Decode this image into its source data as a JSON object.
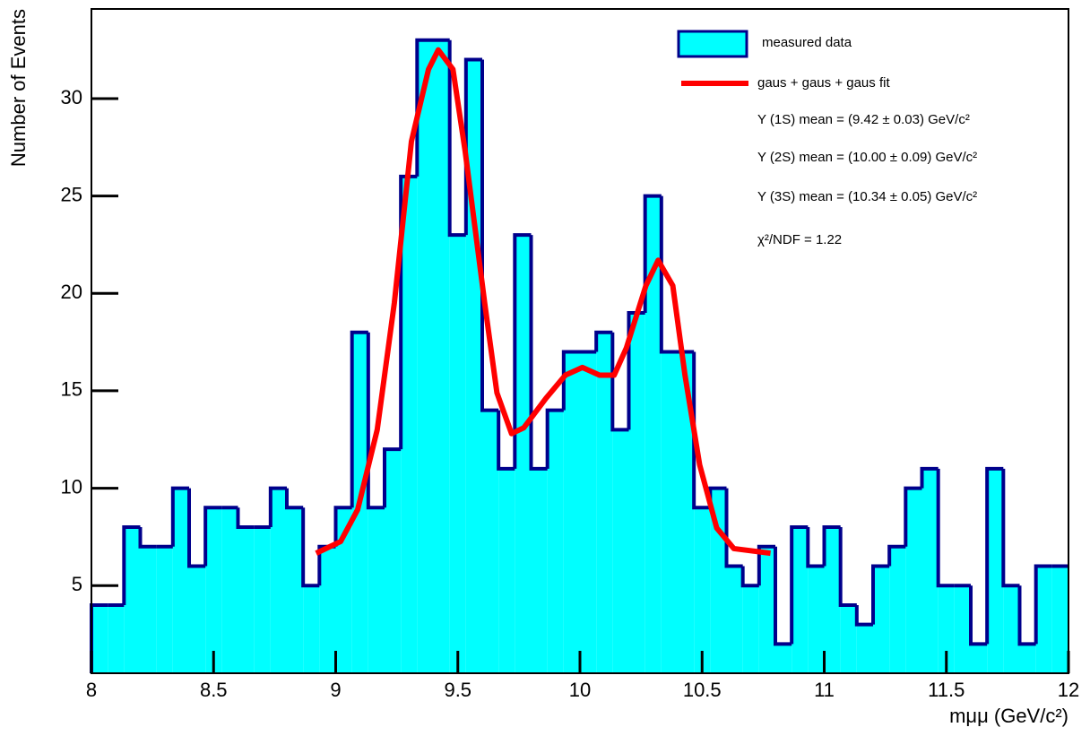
{
  "chart_data": {
    "type": "histogram",
    "ylabel": "Number of Events",
    "xlabel": "mμμ (GeV/c²)",
    "bins": [
      8,
      8.0667,
      8.1333,
      8.2,
      8.2667,
      8.3333,
      8.4,
      8.4667,
      8.5333,
      8.6,
      8.6667,
      8.7333,
      8.8,
      8.8667,
      8.9333,
      9,
      9.0667,
      9.1333,
      9.2,
      9.2667,
      9.3333,
      9.4,
      9.4667,
      9.5333,
      9.6,
      9.6667,
      9.7333,
      9.8,
      9.8667,
      9.9333,
      10,
      10.0667,
      10.1333,
      10.2,
      10.2667,
      10.3333,
      10.4,
      10.4667,
      10.5333,
      10.6,
      10.6667,
      10.7333,
      10.8,
      10.8667,
      10.9333,
      11,
      11.0667,
      11.1333,
      11.2,
      11.2667,
      11.3333,
      11.4,
      11.4667,
      11.5333,
      11.6,
      11.6667,
      11.7333,
      11.8,
      11.8667,
      11.9333,
      12
    ],
    "series": [
      {
        "name": "measured data",
        "color": "#00ffff",
        "edge_color": "#00008b",
        "values": [
          4,
          4,
          8,
          7,
          7,
          10,
          6,
          9,
          9,
          8,
          8,
          10,
          9,
          5,
          7,
          9,
          18,
          9,
          12,
          26,
          33,
          33,
          23,
          32,
          14,
          11,
          23,
          11,
          14,
          17,
          17,
          18,
          13,
          19,
          25,
          17,
          17,
          9,
          10,
          6,
          5,
          7,
          2,
          8,
          6,
          8,
          4,
          3,
          6,
          7,
          10,
          11,
          5,
          5,
          2,
          11,
          5,
          2,
          6,
          6
        ]
      },
      {
        "name": "gaus + gaus + gaus fit",
        "type": "line",
        "color": "#ff0000",
        "x": [
          8.92,
          9.02,
          9.09,
          9.17,
          9.24,
          9.31,
          9.38,
          9.42,
          9.48,
          9.53,
          9.61,
          9.66,
          9.72,
          9.77,
          9.86,
          9.94,
          10.01,
          10.08,
          10.14,
          10.19,
          10.27,
          10.32,
          10.38,
          10.43,
          10.49,
          10.56,
          10.63,
          10.78
        ],
        "values": [
          6.66,
          7.26,
          8.9,
          13.0,
          19.5,
          27.8,
          31.5,
          32.5,
          31.5,
          27.3,
          19.5,
          14.9,
          12.8,
          13.1,
          14.6,
          15.8,
          16.2,
          15.8,
          15.8,
          17.2,
          20.4,
          21.7,
          20.4,
          15.8,
          11.2,
          7.95,
          6.9,
          6.66
        ]
      }
    ],
    "annotations": [
      "Υ (1S) mean = (9.42 ± 0.03) GeV/c²",
      "Υ (2S) mean = (10.00 ± 0.09) GeV/c²",
      "Υ (3S) mean = (10.34 ± 0.05) GeV/c²",
      "χ²/NDF = 1.22"
    ],
    "xlim": [
      8,
      12
    ],
    "ylim": [
      0.5,
      34.6
    ],
    "xticks": [
      8,
      8.5,
      9,
      9.5,
      10,
      10.5,
      11,
      11.5,
      12
    ],
    "yticks": [
      5,
      10,
      15,
      20,
      25,
      30
    ],
    "legend": "upper right"
  }
}
